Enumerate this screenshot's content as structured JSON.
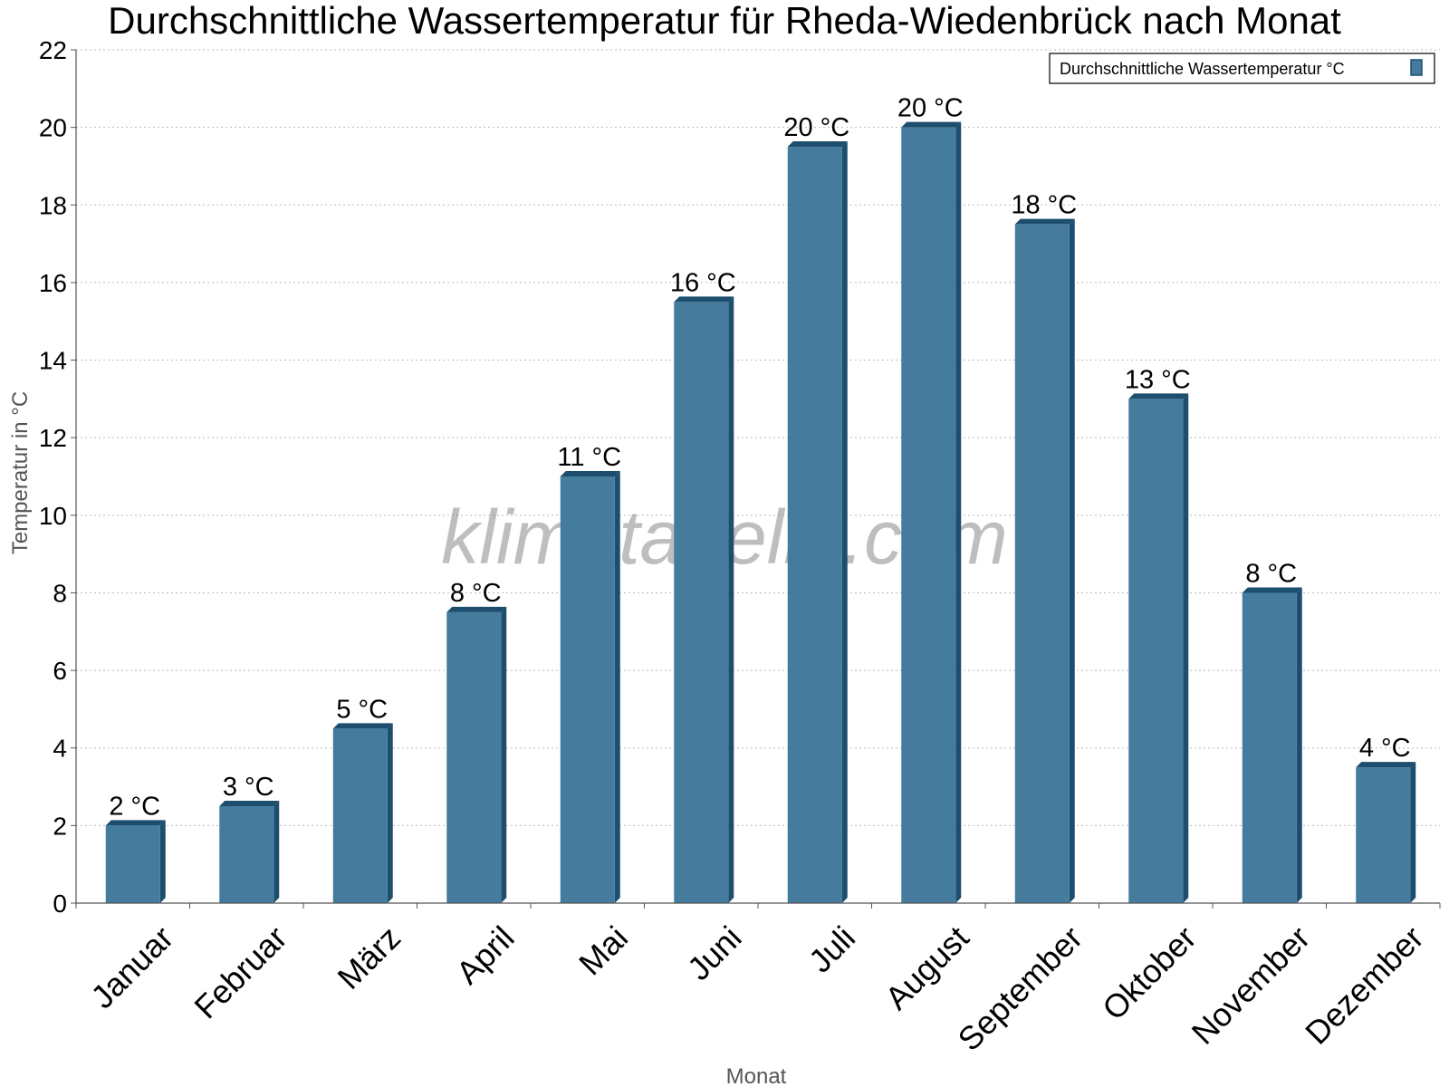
{
  "title": "Durchschnittliche Wassertemperatur für Rheda-Wiedenbrück nach Monat",
  "watermark": "klimatabelle.com",
  "colors": {
    "bar_front": "#457b9d",
    "bar_side": "#1d4e6e",
    "grid": "#bbbbbb",
    "axis": "#555555"
  },
  "chart_data": {
    "type": "bar",
    "title": "Durchschnittliche Wassertemperatur für Rheda-Wiedenbrück nach Monat",
    "xlabel": "Monat",
    "ylabel": "Temperatur in °C",
    "ylim": [
      0,
      22
    ],
    "yticks": [
      0,
      2,
      4,
      6,
      8,
      10,
      12,
      14,
      16,
      18,
      20,
      22
    ],
    "grid": true,
    "legend_position": "top-right",
    "categories": [
      "Januar",
      "Februar",
      "März",
      "April",
      "Mai",
      "Juni",
      "Juli",
      "August",
      "September",
      "Oktober",
      "November",
      "Dezember"
    ],
    "series": [
      {
        "name": "Durchschnittliche Wassertemperatur °C",
        "values": [
          2,
          2.5,
          4.5,
          7.5,
          11,
          15.5,
          19.5,
          20,
          17.5,
          13,
          8,
          3.5
        ],
        "labels": [
          "2 °C",
          "3 °C",
          "5 °C",
          "8 °C",
          "11 °C",
          "16 °C",
          "20 °C",
          "20 °C",
          "18 °C",
          "13 °C",
          "8 °C",
          "4 °C"
        ]
      }
    ]
  }
}
